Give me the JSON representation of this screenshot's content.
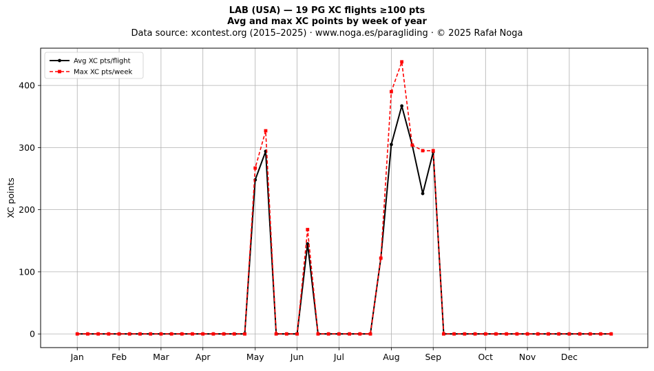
{
  "title": {
    "line1": "LAB (USA)  —  19 PG XC flights ≥100 pts",
    "line2": "Avg and max XC points by week of year",
    "line3": "Data source: xcontest.org (2015–2025)  ·  www.noga.es/paragliding  ·  © 2025 Rafał Noga"
  },
  "chart_data": {
    "type": "line",
    "xlabel": "",
    "ylabel": "XC points",
    "xlim": [
      -2.5,
      55.5
    ],
    "ylim": [
      -22,
      460
    ],
    "yticks": [
      0,
      100,
      200,
      300,
      400
    ],
    "grid": true,
    "legend_position": "top-left",
    "month_ticks": [
      {
        "label": "Jan",
        "week": 1
      },
      {
        "label": "Feb",
        "week": 5
      },
      {
        "label": "Mar",
        "week": 9
      },
      {
        "label": "Apr",
        "week": 13
      },
      {
        "label": "May",
        "week": 18
      },
      {
        "label": "Jun",
        "week": 22
      },
      {
        "label": "Jul",
        "week": 26
      },
      {
        "label": "Aug",
        "week": 31
      },
      {
        "label": "Sep",
        "week": 35
      },
      {
        "label": "Oct",
        "week": 40
      },
      {
        "label": "Nov",
        "week": 44
      },
      {
        "label": "Dec",
        "week": 48
      }
    ],
    "x": [
      1,
      2,
      3,
      4,
      5,
      6,
      7,
      8,
      9,
      10,
      11,
      12,
      13,
      14,
      15,
      16,
      17,
      18,
      19,
      20,
      21,
      22,
      23,
      24,
      25,
      26,
      27,
      28,
      29,
      30,
      31,
      32,
      33,
      34,
      35,
      36,
      37,
      38,
      39,
      40,
      41,
      42,
      43,
      44,
      45,
      46,
      47,
      48,
      49,
      50,
      51,
      52
    ],
    "series": [
      {
        "name": "Avg XC pts/flight",
        "color": "#000000",
        "style": "solid",
        "marker": "circle",
        "values": [
          0,
          0,
          0,
          0,
          0,
          0,
          0,
          0,
          0,
          0,
          0,
          0,
          0,
          0,
          0,
          0,
          0,
          248,
          294,
          0,
          0,
          0,
          145,
          0,
          0,
          0,
          0,
          0,
          0,
          122,
          305,
          367,
          304,
          226,
          293,
          0,
          0,
          0,
          0,
          0,
          0,
          0,
          0,
          0,
          0,
          0,
          0,
          0,
          0,
          0,
          0,
          0
        ]
      },
      {
        "name": "Max XC pts/week",
        "color": "#ff0000",
        "style": "dashed",
        "marker": "square",
        "values": [
          0,
          0,
          0,
          0,
          0,
          0,
          0,
          0,
          0,
          0,
          0,
          0,
          0,
          0,
          0,
          0,
          0,
          267,
          327,
          0,
          0,
          0,
          168,
          0,
          0,
          0,
          0,
          0,
          0,
          122,
          390,
          438,
          304,
          295,
          295,
          0,
          0,
          0,
          0,
          0,
          0,
          0,
          0,
          0,
          0,
          0,
          0,
          0,
          0,
          0,
          0,
          0
        ]
      }
    ]
  }
}
